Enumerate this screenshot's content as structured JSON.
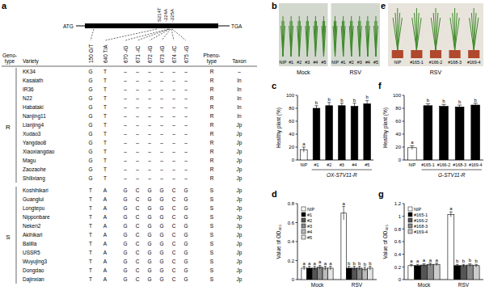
{
  "table": {
    "panel": "a",
    "gene": {
      "start": "ATG",
      "end": "TGA",
      "sites": [
        "S214T",
        "-224A",
        "-225A"
      ]
    },
    "headers": [
      [
        "Geno-",
        "type"
      ],
      [
        "Variety"
      ],
      [
        "150 G/T"
      ],
      [
        "640 T/A"
      ],
      [
        "670 -/G"
      ],
      [
        "671 -/C"
      ],
      [
        "672 -/G"
      ],
      [
        "673 -/G"
      ],
      [
        "674 -/C"
      ],
      [
        "675 -/G"
      ],
      [
        "Pheno-",
        "type"
      ],
      [
        "Taxon"
      ]
    ],
    "groups": [
      {
        "genotype": "R",
        "rows": [
          [
            "KK34",
            "G",
            "T",
            "–",
            "–",
            "–",
            "–",
            "–",
            "–",
            "R",
            "–"
          ],
          [
            "Kasalath",
            "G",
            "T",
            "–",
            "–",
            "–",
            "–",
            "–",
            "–",
            "R",
            "In"
          ],
          [
            "IR36",
            "G",
            "T",
            "–",
            "–",
            "–",
            "–",
            "–",
            "–",
            "R",
            "In"
          ],
          [
            "N22",
            "G",
            "T",
            "–",
            "–",
            "–",
            "–",
            "–",
            "–",
            "R",
            "In"
          ],
          [
            "Habataki",
            "G",
            "T",
            "–",
            "–",
            "–",
            "–",
            "–",
            "–",
            "R",
            "In"
          ],
          [
            "Nanjing11",
            "G",
            "T",
            "–",
            "–",
            "–",
            "–",
            "–",
            "–",
            "R",
            "In"
          ],
          [
            "Lianjing4",
            "G",
            "T",
            "–",
            "–",
            "–",
            "–",
            "–",
            "–",
            "R",
            "Jp"
          ],
          [
            "Xudao3",
            "G",
            "T",
            "–",
            "–",
            "–",
            "–",
            "–",
            "–",
            "R",
            "Jp"
          ],
          [
            "Yangdao8",
            "G",
            "T",
            "–",
            "–",
            "–",
            "–",
            "–",
            "–",
            "R",
            "Jp"
          ],
          [
            "Xiaoxiangdao",
            "G",
            "T",
            "–",
            "–",
            "–",
            "–",
            "–",
            "–",
            "R",
            "Jp"
          ],
          [
            "Magu",
            "G",
            "T",
            "–",
            "–",
            "–",
            "–",
            "–",
            "–",
            "R",
            "Jp"
          ],
          [
            "Zaozaohe",
            "G",
            "T",
            "–",
            "–",
            "–",
            "–",
            "–",
            "–",
            "R",
            "Jp"
          ],
          [
            "Shilixiang",
            "G",
            "T",
            "–",
            "–",
            "–",
            "–",
            "–",
            "–",
            "R",
            "Jp"
          ]
        ]
      },
      {
        "genotype": "S",
        "rows": [
          [
            "Koshihikari",
            "T",
            "A",
            "G",
            "C",
            "G",
            "G",
            "C",
            "G",
            "S",
            "Jp"
          ],
          [
            "Guanglui",
            "T",
            "A",
            "G",
            "C",
            "G",
            "G",
            "C",
            "G",
            "S",
            "Jp"
          ],
          [
            "Longtepu",
            "T",
            "A",
            "G",
            "C",
            "G",
            "G",
            "C",
            "G",
            "S",
            "Jp"
          ],
          [
            "Nipponbare",
            "T",
            "A",
            "G",
            "C",
            "G",
            "G",
            "C",
            "G",
            "S",
            "Jp"
          ],
          [
            "Neken2",
            "T",
            "A",
            "G",
            "C",
            "G",
            "G",
            "C",
            "G",
            "S",
            "Jp"
          ],
          [
            "Akihikari",
            "T",
            "A",
            "G",
            "C",
            "G",
            "G",
            "C",
            "G",
            "S",
            "Jp"
          ],
          [
            "Balilla",
            "T",
            "A",
            "G",
            "C",
            "G",
            "G",
            "C",
            "G",
            "S",
            "Jp"
          ],
          [
            "USSR5",
            "T",
            "A",
            "G",
            "C",
            "G",
            "G",
            "C",
            "G",
            "S",
            "Jp"
          ],
          [
            "Wuyujing3",
            "T",
            "A",
            "G",
            "C",
            "G",
            "G",
            "C",
            "G",
            "S",
            "Jp"
          ],
          [
            "Dongdao",
            "T",
            "A",
            "G",
            "C",
            "G",
            "G",
            "C",
            "G",
            "S",
            "Jp"
          ],
          [
            "Dajinxian",
            "T",
            "A",
            "G",
            "C",
            "G",
            "G",
            "C",
            "G",
            "S",
            "Jp"
          ]
        ]
      }
    ]
  },
  "photos": [
    {
      "panel": "b",
      "groups": [
        {
          "label": "Mock",
          "plants": [
            "NIP",
            "#1",
            "#2",
            "#3",
            "#4",
            "#5"
          ]
        },
        {
          "label": "RSV",
          "plants": [
            "NIP",
            "#1",
            "#2",
            "#3",
            "#4",
            "#5"
          ]
        }
      ]
    },
    {
      "panel": "e",
      "groups": [
        {
          "label": "RSV",
          "plants": [
            "NIP",
            "#165-1",
            "#166-2",
            "#168-3",
            "#169-4"
          ]
        }
      ]
    }
  ],
  "chart_data": [
    {
      "type": "bar",
      "title": "c",
      "y_label": "Healthy plant (%)",
      "x_label": "OX-STV11-R",
      "categories": [
        "NIP",
        "#1",
        "#2",
        "#3",
        "#4",
        "#5"
      ],
      "values": [
        16,
        80,
        84,
        84,
        83,
        87
      ],
      "errors": [
        4,
        4,
        5,
        4,
        5,
        5
      ],
      "letters": [
        "a",
        "b",
        "b",
        "b",
        "b",
        "b"
      ],
      "colors": [
        "#ffffff",
        "#000000",
        "#000000",
        "#000000",
        "#000000",
        "#000000"
      ],
      "ylim": [
        0,
        100
      ],
      "yticks": [
        0,
        20,
        40,
        60,
        80,
        100
      ]
    },
    {
      "type": "bar",
      "title": "d",
      "y_label": "Value of OD₄₀₅",
      "categories": [
        "Mock",
        "RSV"
      ],
      "legend": "top-left",
      "series": [
        {
          "name": "NIP",
          "color": "#ffffff",
          "values": [
            0.12,
            0.7
          ],
          "errors": [
            0.02,
            0.07
          ],
          "letters": [
            "a",
            "a"
          ]
        },
        {
          "name": "#1",
          "color": "#000000",
          "values": [
            0.12,
            0.12
          ],
          "errors": [
            0.02,
            0.02
          ],
          "letters": [
            "a",
            "b"
          ]
        },
        {
          "name": "#2",
          "color": "#555555",
          "values": [
            0.12,
            0.12
          ],
          "errors": [
            0.02,
            0.02
          ],
          "letters": [
            "a",
            "b"
          ]
        },
        {
          "name": "#3",
          "color": "#888888",
          "values": [
            0.13,
            0.12
          ],
          "errors": [
            0.02,
            0.02
          ],
          "letters": [
            "a",
            "b"
          ]
        },
        {
          "name": "#4",
          "color": "#bbbbbb",
          "values": [
            0.12,
            0.11
          ],
          "errors": [
            0.02,
            0.02
          ],
          "letters": [
            "a",
            "b"
          ]
        },
        {
          "name": "#5",
          "color": "#e6e6e6",
          "values": [
            0.12,
            0.12
          ],
          "errors": [
            0.02,
            0.02
          ],
          "letters": [
            "a",
            "b"
          ]
        }
      ],
      "ylim": [
        0,
        0.8
      ],
      "yticks": [
        0,
        0.2,
        0.4,
        0.6,
        0.8
      ]
    },
    {
      "type": "bar",
      "title": "f",
      "x_label": "G-STV11-R",
      "y_label": "Healthy plant (%)",
      "categories": [
        "NIP",
        "#165-1",
        "#166-2",
        "#168-3",
        "#169-4"
      ],
      "values": [
        19,
        84,
        83,
        82,
        85
      ],
      "errors": [
        3,
        3,
        3,
        3,
        3
      ],
      "letters": [
        "a",
        "b",
        "b",
        "b",
        "b"
      ],
      "colors": [
        "#ffffff",
        "#000000",
        "#000000",
        "#000000",
        "#000000"
      ],
      "ylim": [
        0,
        100
      ],
      "yticks": [
        0,
        20,
        40,
        60,
        80,
        100
      ]
    },
    {
      "type": "bar",
      "title": "g",
      "y_label": "Value of OD₄₀₅",
      "categories": [
        "Mock",
        "RSV"
      ],
      "legend": "top-left",
      "series": [
        {
          "name": "NIP",
          "color": "#ffffff",
          "values": [
            0.22,
            1.03
          ],
          "errors": [
            0.02,
            0.04
          ],
          "letters": [
            "a",
            "a"
          ]
        },
        {
          "name": "#165-1",
          "color": "#000000",
          "values": [
            0.22,
            0.22
          ],
          "errors": [
            0.02,
            0.02
          ],
          "letters": [
            "a",
            "b"
          ]
        },
        {
          "name": "#166-2",
          "color": "#555555",
          "values": [
            0.23,
            0.22
          ],
          "errors": [
            0.02,
            0.02
          ],
          "letters": [
            "a",
            "b"
          ]
        },
        {
          "name": "#168-3",
          "color": "#888888",
          "values": [
            0.24,
            0.23
          ],
          "errors": [
            0.02,
            0.02
          ],
          "letters": [
            "a",
            "b"
          ]
        },
        {
          "name": "#169-4",
          "color": "#cccccc",
          "values": [
            0.24,
            0.22
          ],
          "errors": [
            0.02,
            0.02
          ],
          "letters": [
            "a",
            "b"
          ]
        }
      ],
      "ylim": [
        0,
        1.2
      ],
      "yticks": [
        0,
        0.2,
        0.4,
        0.6,
        0.8,
        1,
        1.2
      ]
    }
  ]
}
